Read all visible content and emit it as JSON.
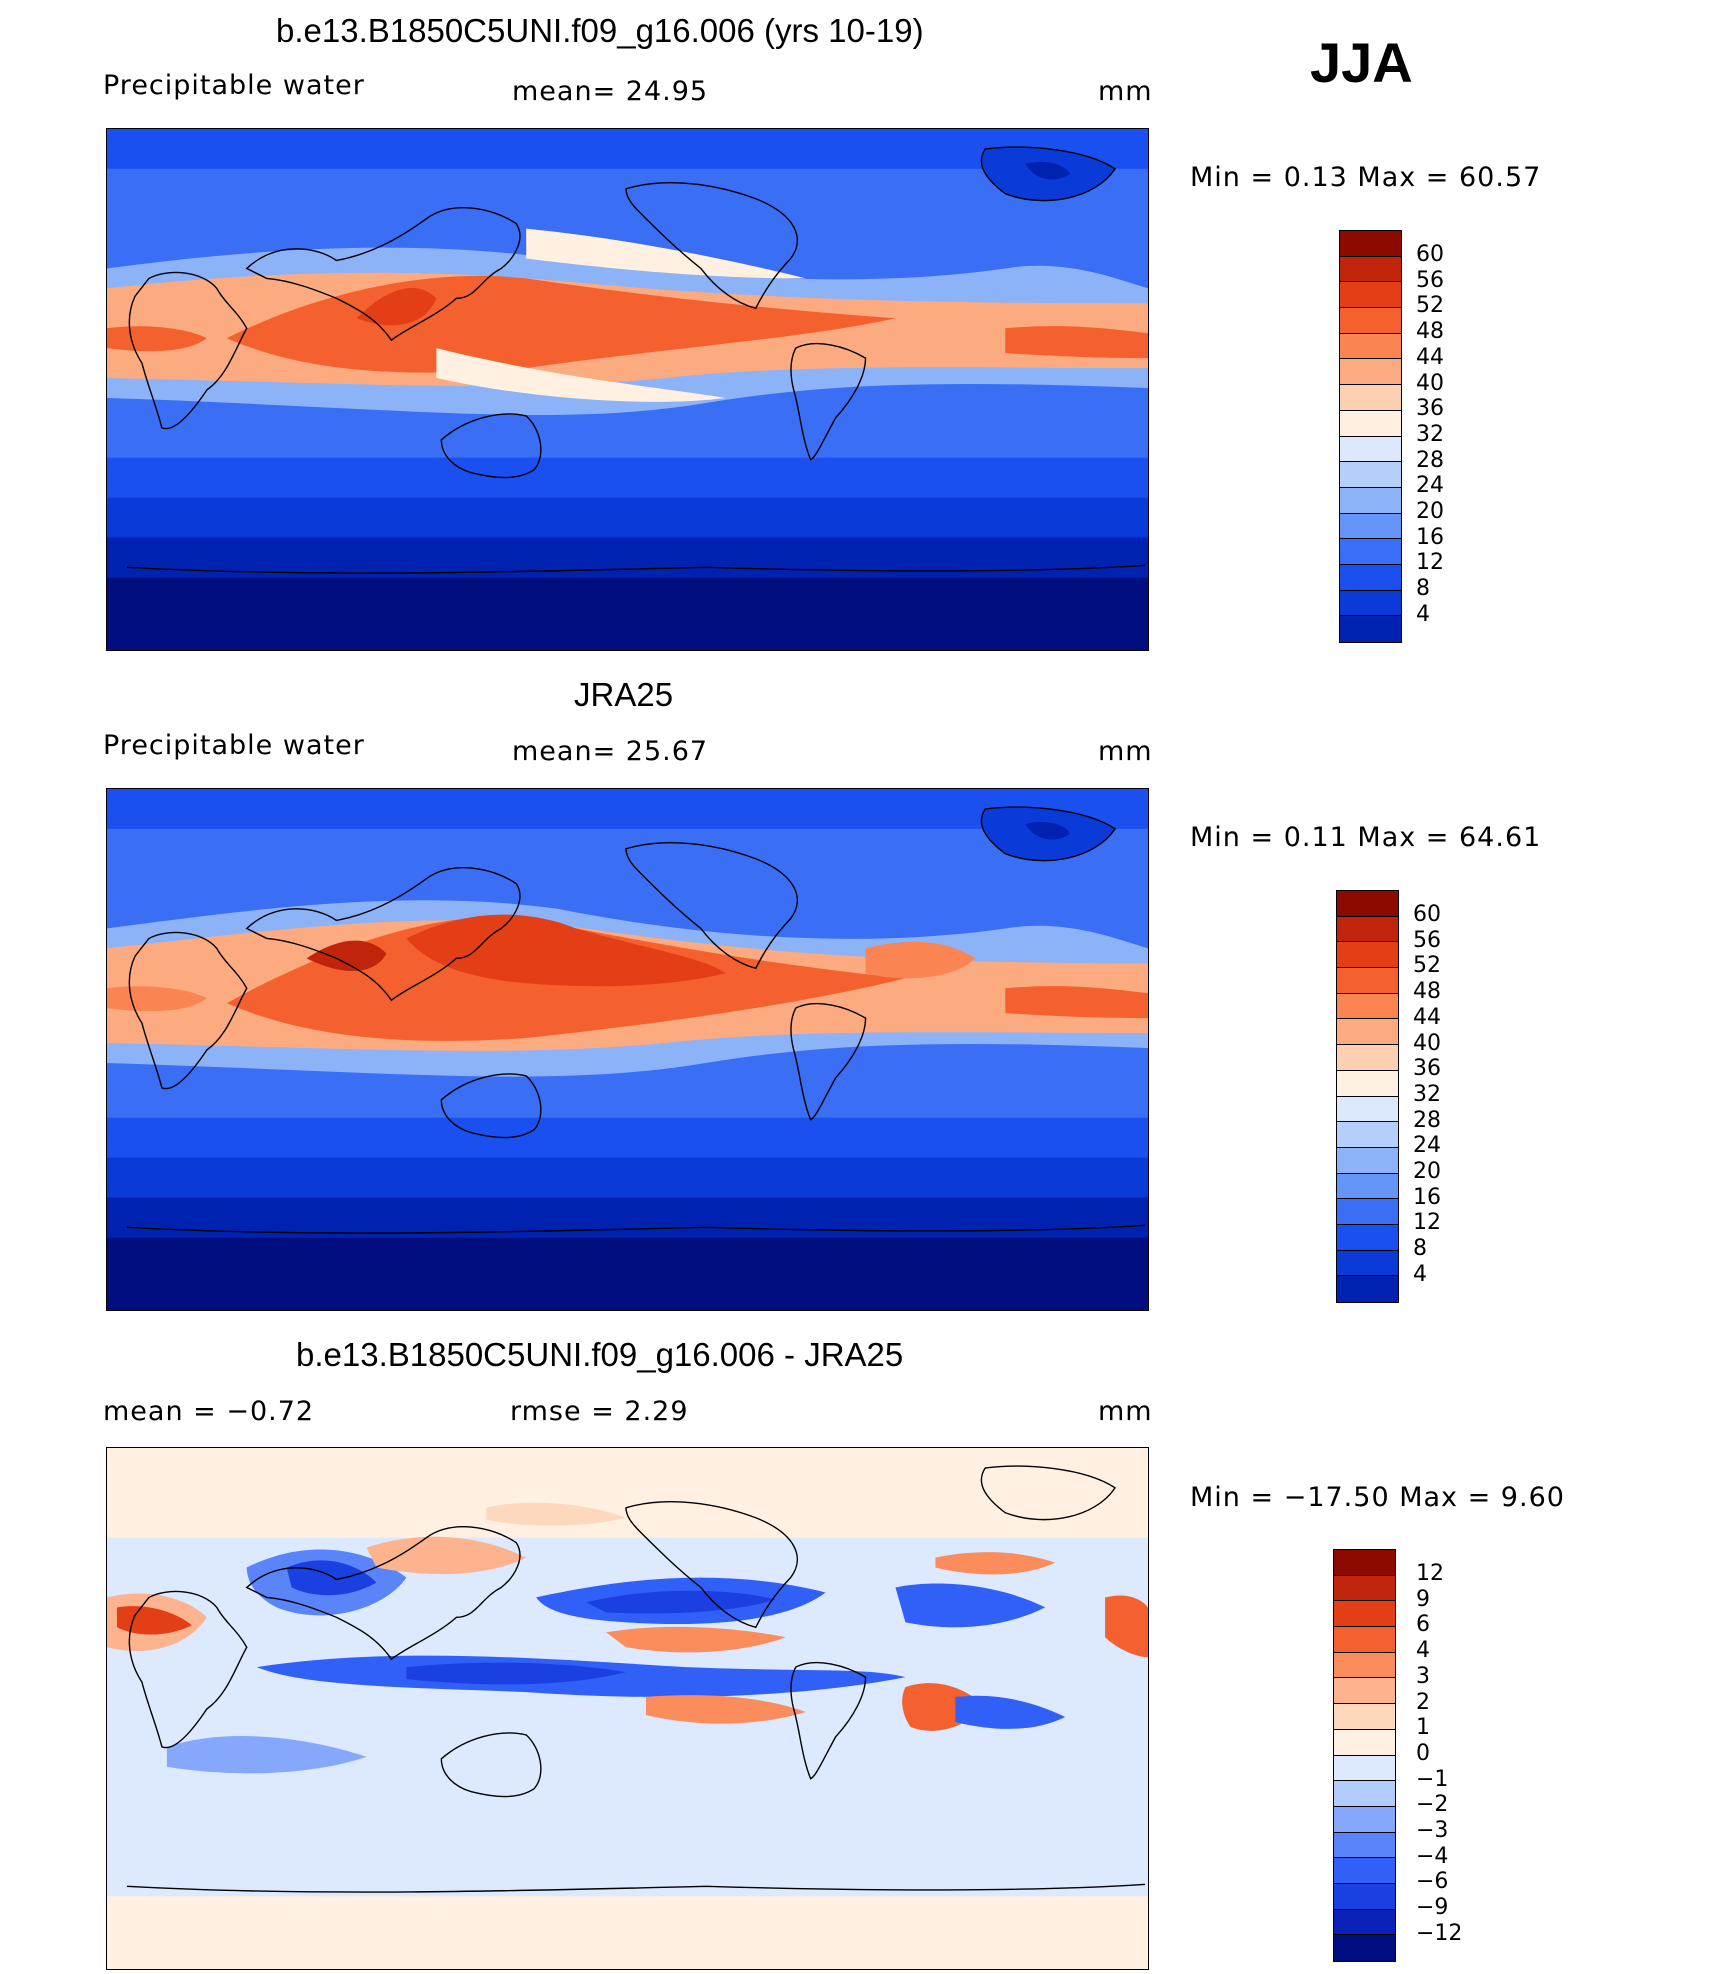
{
  "season": "JJA",
  "palette": {
    "mean": [
      "#000e80",
      "#0022b0",
      "#0a3ad8",
      "#1a50f0",
      "#3a6ef4",
      "#6494f6",
      "#8cb2f8",
      "#b4d0fa",
      "#dce9fc",
      "#fff0e2",
      "#fdd0b2",
      "#fcaa80",
      "#fa8452",
      "#f4612e",
      "#e43e16",
      "#c0240a",
      "#8c0a00"
    ],
    "diff": [
      "#000e80",
      "#0a22b8",
      "#1a40e2",
      "#3060f8",
      "#5a84fa",
      "#86a8fc",
      "#b2ccfd",
      "#dce9fe",
      "#fff0e2",
      "#fed8bc",
      "#fdb48e",
      "#fb8c5c",
      "#f4612e",
      "#e43e16",
      "#c0240a",
      "#8c0a00"
    ]
  },
  "panels": [
    {
      "title": "b.e13.B1850C5UNI.f09_g16.006 (yrs 10-19)",
      "left_text": "Precipitable  water",
      "center_text": "mean=   24.95",
      "units": "mm",
      "minmax": "Min  =     0.13  Max  =     60.57",
      "legend": [
        "60",
        "56",
        "52",
        "48",
        "44",
        "40",
        "36",
        "32",
        "28",
        "24",
        "20",
        "16",
        "12",
        "8",
        "4"
      ]
    },
    {
      "title": "JRA25",
      "left_text": "Precipitable  water",
      "center_text": "mean=   25.67",
      "units": "mm",
      "minmax": "Min  =     0.11  Max  =     64.61",
      "legend": [
        "60",
        "56",
        "52",
        "48",
        "44",
        "40",
        "36",
        "32",
        "28",
        "24",
        "20",
        "16",
        "12",
        "8",
        "4"
      ]
    },
    {
      "title": "b.e13.B1850C5UNI.f09_g16.006 - JRA25",
      "left_text": "mean  =    −0.72",
      "center_text": "rmse  =     2.29",
      "units": "mm",
      "minmax": "Min  = −17.50  Max  =      9.60",
      "legend": [
        "12",
        "9",
        "6",
        "4",
        "3",
        "2",
        "1",
        "0",
        "−1",
        "−2",
        "−3",
        "−4",
        "−6",
        "−9",
        "−12"
      ]
    }
  ]
}
